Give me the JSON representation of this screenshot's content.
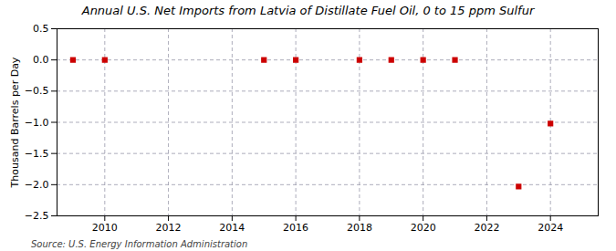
{
  "chart_data": {
    "type": "scatter",
    "title": "Annual U.S. Net Imports from Latvia of Distillate Fuel Oil, 0 to 15 ppm Sulfur",
    "ylabel": "Thousand Barrels per Day",
    "source": "Source: U.S. Energy Information Administration",
    "x": [
      2009,
      2010,
      2015,
      2016,
      2018,
      2019,
      2020,
      2021,
      2023,
      2024
    ],
    "values": [
      0,
      0,
      0,
      0,
      0,
      0,
      0,
      0,
      -2.03,
      -1.02
    ],
    "color": "#cc0000",
    "marker": "square",
    "grid": true,
    "xlim": [
      2008.5,
      2025.5
    ],
    "ylim": [
      -2.5,
      0.5
    ],
    "xticks": [
      2010,
      2012,
      2014,
      2016,
      2018,
      2020,
      2022,
      2024
    ],
    "yticks": [
      0.5,
      {
        "value": 0.0,
        "label": "0.0"
      },
      {
        "value": -0.5,
        "label": "−0.5"
      },
      {
        "value": -1.0,
        "label": "−1.0"
      },
      {
        "value": -1.5,
        "label": "−1.5"
      },
      {
        "value": -2.0,
        "label": "−2.0"
      },
      {
        "value": -2.5,
        "label": "−2.5"
      }
    ]
  }
}
